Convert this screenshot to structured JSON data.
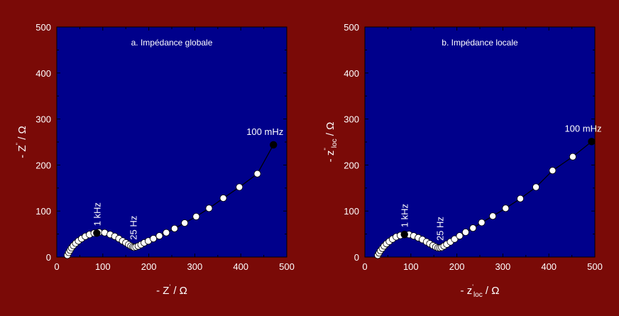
{
  "colors": {
    "background": "#7a0a07",
    "plot_area": "#00008b",
    "marker_fill": "#ffffff",
    "marker_highlight": "#000000",
    "text": "#ffffff",
    "line": "#000000"
  },
  "chart_data": [
    {
      "type": "scatter",
      "title": "a. Impédance globale",
      "xlabel": "- Z' / Ω",
      "ylabel": "- Z'' / Ω",
      "xlim": [
        0,
        500
      ],
      "ylim": [
        0,
        500
      ],
      "xticks": [
        0,
        100,
        200,
        300,
        400,
        500
      ],
      "yticks": [
        0,
        100,
        200,
        300,
        400,
        500
      ],
      "grid": false,
      "series": [
        {
          "x": [
            23,
            26,
            29,
            32,
            36,
            41,
            47,
            54,
            62,
            71,
            81,
            92,
            104,
            116,
            126,
            135,
            143,
            150,
            156,
            161,
            165,
            168,
            172,
            177,
            183,
            190,
            199,
            210,
            223,
            238,
            256,
            278,
            303,
            331,
            362,
            397,
            436,
            471
          ],
          "y": [
            4,
            10,
            15,
            20,
            25,
            30,
            35,
            40,
            45,
            49,
            52,
            54,
            53,
            49,
            45,
            40,
            35,
            31,
            27,
            24,
            22,
            21,
            22,
            24,
            27,
            31,
            35,
            40,
            46,
            53,
            62,
            74,
            88,
            106,
            128,
            152,
            181,
            244
          ]
        }
      ],
      "highlighted_points": [
        {
          "x": 87,
          "y": 52
        },
        {
          "x": 471,
          "y": 244
        }
      ],
      "annotations": [
        {
          "text": "1 kHz",
          "x": 87,
          "y": 52,
          "rotated": true
        },
        {
          "text": "25 Hz",
          "x": 166,
          "y": 22,
          "rotated": true
        },
        {
          "text": "100 mHz",
          "x": 471,
          "y": 244,
          "rotated": false
        }
      ]
    },
    {
      "type": "scatter",
      "title": "b. Impédance locale",
      "xlabel": "- z'loc / Ω",
      "ylabel": "- z''loc / Ω",
      "xlim": [
        0,
        500
      ],
      "ylim": [
        0,
        500
      ],
      "xticks": [
        0,
        100,
        200,
        300,
        400,
        500
      ],
      "yticks": [
        0,
        100,
        200,
        300,
        400,
        500
      ],
      "grid": false,
      "series": [
        {
          "x": [
            28,
            31,
            34,
            38,
            42,
            47,
            53,
            60,
            68,
            77,
            86,
            96,
            106,
            116,
            125,
            134,
            141,
            148,
            154,
            159,
            163,
            167,
            172,
            178,
            186,
            195,
            206,
            219,
            235,
            254,
            278,
            306,
            338,
            372,
            408,
            452,
            493
          ],
          "y": [
            4,
            9,
            14,
            19,
            24,
            29,
            34,
            39,
            44,
            47,
            49,
            49,
            46,
            42,
            38,
            33,
            29,
            25,
            22,
            20,
            20,
            21,
            24,
            28,
            33,
            39,
            46,
            54,
            63,
            75,
            89,
            106,
            127,
            152,
            188,
            218,
            251
          ]
        }
      ],
      "highlighted_points": [
        {
          "x": 86,
          "y": 49
        },
        {
          "x": 493,
          "y": 251
        }
      ],
      "annotations": [
        {
          "text": "1 kHz",
          "x": 86,
          "y": 49,
          "rotated": true
        },
        {
          "text": "25 Hz",
          "x": 163,
          "y": 20,
          "rotated": true
        },
        {
          "text": "100 mHz",
          "x": 493,
          "y": 251,
          "rotated": false
        }
      ]
    }
  ]
}
